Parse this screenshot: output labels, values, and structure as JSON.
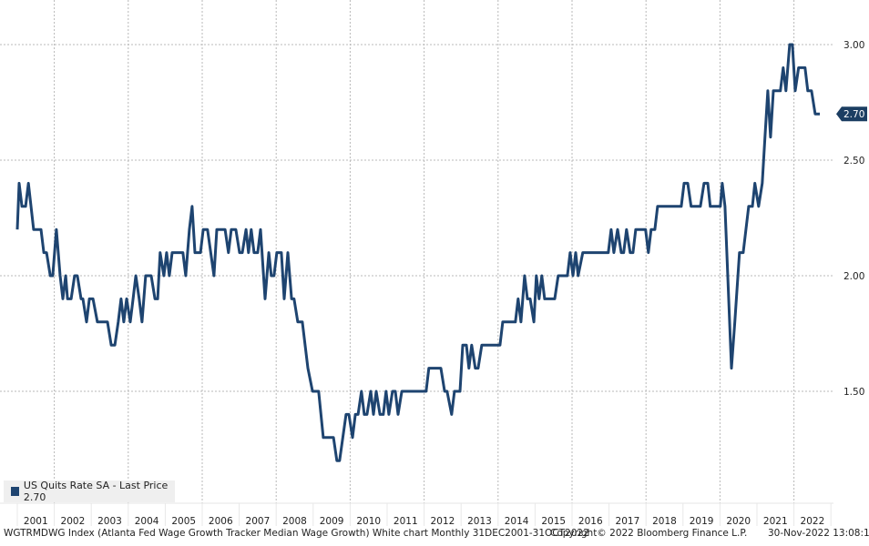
{
  "chart_data": {
    "type": "line",
    "title": "",
    "footer_left": "WGTRMDWG Index (Atlanta Fed Wage Growth Tracker Median Wage Growth) White chart  Monthly 31DEC2001-31OCT2022",
    "copyright": "Copyright© 2022 Bloomberg Finance L.P.",
    "timestamp": "30-Nov-2022 13:08:17",
    "legend": {
      "label": "US Quits Rate SA - Last Price 2.70",
      "position": "bottom-left"
    },
    "last_price": "2.70",
    "line_color": "#1e4470",
    "x_unit": "months since Dec 2001 (approx)",
    "xlim": [
      0,
      260.7
    ],
    "ylim": [
      1.0,
      3.18
    ],
    "y_ticks": [
      "3.00",
      "2.50",
      "2.00",
      "1.50"
    ],
    "y_tick_values": [
      3.0,
      2.5,
      2.0,
      1.5
    ],
    "x_tick_labels": [
      "2001",
      "2002",
      "2003",
      "2004",
      "2005",
      "2006",
      "2007",
      "2008",
      "2009",
      "2010",
      "2011",
      "2012",
      "2013",
      "2014",
      "2015",
      "2016",
      "2017",
      "2018",
      "2019",
      "2020",
      "2021",
      "2022"
    ],
    "series": [
      {
        "name": "US Quits Rate SA",
        "points": [
          [
            0,
            2.2
          ],
          [
            0.6,
            2.4
          ],
          [
            1.5,
            2.3
          ],
          [
            2.7,
            2.3
          ],
          [
            3.6,
            2.4
          ],
          [
            5.3,
            2.2
          ],
          [
            7.7,
            2.2
          ],
          [
            8.6,
            2.1
          ],
          [
            9.5,
            2.1
          ],
          [
            10.7,
            2.0
          ],
          [
            11.5,
            2.0
          ],
          [
            12.7,
            2.2
          ],
          [
            13.9,
            2.0
          ],
          [
            14.8,
            1.9
          ],
          [
            15.7,
            2.0
          ],
          [
            16.3,
            1.9
          ],
          [
            17.5,
            1.9
          ],
          [
            18.6,
            2.0
          ],
          [
            19.5,
            2.0
          ],
          [
            20.7,
            1.9
          ],
          [
            21.3,
            1.9
          ],
          [
            22.5,
            1.8
          ],
          [
            23.4,
            1.9
          ],
          [
            24.6,
            1.9
          ],
          [
            26.0,
            1.8
          ],
          [
            29.3,
            1.8
          ],
          [
            30.5,
            1.7
          ],
          [
            31.7,
            1.7
          ],
          [
            32.8,
            1.8
          ],
          [
            33.7,
            1.9
          ],
          [
            34.6,
            1.8
          ],
          [
            35.5,
            1.9
          ],
          [
            36.7,
            1.8
          ],
          [
            37.6,
            1.9
          ],
          [
            38.5,
            2.0
          ],
          [
            39.6,
            1.9
          ],
          [
            40.5,
            1.8
          ],
          [
            41.7,
            2.0
          ],
          [
            43.5,
            2.0
          ],
          [
            44.7,
            1.9
          ],
          [
            45.6,
            1.9
          ],
          [
            46.4,
            2.1
          ],
          [
            47.6,
            2.0
          ],
          [
            48.5,
            2.1
          ],
          [
            49.4,
            2.0
          ],
          [
            50.3,
            2.1
          ],
          [
            53.8,
            2.1
          ],
          [
            54.7,
            2.0
          ],
          [
            55.9,
            2.2
          ],
          [
            56.8,
            2.3
          ],
          [
            57.7,
            2.1
          ],
          [
            59.5,
            2.1
          ],
          [
            60.4,
            2.2
          ],
          [
            61.8,
            2.2
          ],
          [
            63.9,
            2.0
          ],
          [
            64.8,
            2.2
          ],
          [
            67.5,
            2.2
          ],
          [
            68.6,
            2.1
          ],
          [
            69.5,
            2.2
          ],
          [
            71.0,
            2.2
          ],
          [
            72.2,
            2.1
          ],
          [
            73.1,
            2.1
          ],
          [
            74.3,
            2.2
          ],
          [
            75.1,
            2.1
          ],
          [
            76.0,
            2.2
          ],
          [
            76.9,
            2.1
          ],
          [
            78.1,
            2.1
          ],
          [
            79.0,
            2.2
          ],
          [
            80.5,
            1.9
          ],
          [
            81.7,
            2.1
          ],
          [
            82.5,
            2.0
          ],
          [
            83.4,
            2.0
          ],
          [
            84.3,
            2.1
          ],
          [
            85.8,
            2.1
          ],
          [
            86.7,
            1.9
          ],
          [
            87.9,
            2.1
          ],
          [
            89.1,
            1.9
          ],
          [
            89.9,
            1.9
          ],
          [
            91.1,
            1.8
          ],
          [
            92.6,
            1.8
          ],
          [
            94.4,
            1.6
          ],
          [
            95.9,
            1.5
          ],
          [
            97.9,
            1.5
          ],
          [
            99.4,
            1.3
          ],
          [
            102.7,
            1.3
          ],
          [
            103.8,
            1.2
          ],
          [
            104.7,
            1.2
          ],
          [
            106.8,
            1.4
          ],
          [
            107.7,
            1.4
          ],
          [
            108.9,
            1.3
          ],
          [
            109.8,
            1.4
          ],
          [
            110.7,
            1.4
          ],
          [
            111.8,
            1.5
          ],
          [
            112.7,
            1.4
          ],
          [
            113.6,
            1.4
          ],
          [
            114.8,
            1.5
          ],
          [
            115.7,
            1.4
          ],
          [
            116.6,
            1.5
          ],
          [
            117.8,
            1.4
          ],
          [
            118.9,
            1.4
          ],
          [
            119.8,
            1.5
          ],
          [
            120.7,
            1.4
          ],
          [
            121.9,
            1.5
          ],
          [
            122.8,
            1.5
          ],
          [
            123.7,
            1.4
          ],
          [
            124.9,
            1.5
          ],
          [
            132.8,
            1.5
          ],
          [
            133.7,
            1.6
          ],
          [
            137.6,
            1.6
          ],
          [
            138.8,
            1.5
          ],
          [
            139.6,
            1.5
          ],
          [
            141.1,
            1.4
          ],
          [
            142.0,
            1.5
          ],
          [
            143.8,
            1.5
          ],
          [
            144.7,
            1.7
          ],
          [
            145.9,
            1.7
          ],
          [
            146.7,
            1.6
          ],
          [
            147.6,
            1.7
          ],
          [
            148.8,
            1.6
          ],
          [
            149.7,
            1.6
          ],
          [
            150.9,
            1.7
          ],
          [
            156.8,
            1.7
          ],
          [
            157.7,
            1.8
          ],
          [
            161.8,
            1.8
          ],
          [
            162.7,
            1.9
          ],
          [
            163.6,
            1.8
          ],
          [
            164.8,
            2.0
          ],
          [
            165.7,
            1.9
          ],
          [
            166.6,
            1.9
          ],
          [
            167.8,
            1.8
          ],
          [
            168.6,
            2.0
          ],
          [
            169.5,
            1.9
          ],
          [
            170.4,
            2.0
          ],
          [
            171.3,
            1.9
          ],
          [
            174.6,
            1.9
          ],
          [
            175.7,
            2.0
          ],
          [
            178.7,
            2.0
          ],
          [
            179.6,
            2.1
          ],
          [
            180.5,
            2.0
          ],
          [
            181.4,
            2.1
          ],
          [
            182.2,
            2.0
          ],
          [
            183.7,
            2.1
          ],
          [
            192.0,
            2.1
          ],
          [
            192.9,
            2.2
          ],
          [
            193.8,
            2.1
          ],
          [
            195.0,
            2.2
          ],
          [
            196.2,
            2.1
          ],
          [
            197.0,
            2.1
          ],
          [
            197.9,
            2.2
          ],
          [
            199.1,
            2.1
          ],
          [
            200.0,
            2.1
          ],
          [
            200.9,
            2.2
          ],
          [
            204.1,
            2.2
          ],
          [
            205.0,
            2.1
          ],
          [
            205.9,
            2.2
          ],
          [
            207.1,
            2.2
          ],
          [
            208.0,
            2.3
          ],
          [
            215.7,
            2.3
          ],
          [
            216.6,
            2.4
          ],
          [
            217.8,
            2.4
          ],
          [
            218.9,
            2.3
          ],
          [
            221.9,
            2.3
          ],
          [
            223.1,
            2.4
          ],
          [
            224.3,
            2.4
          ],
          [
            225.1,
            2.3
          ],
          [
            228.4,
            2.3
          ],
          [
            229.0,
            2.4
          ],
          [
            229.9,
            2.3
          ],
          [
            232.0,
            1.6
          ],
          [
            233.1,
            1.8
          ],
          [
            234.6,
            2.1
          ],
          [
            235.8,
            2.1
          ],
          [
            237.6,
            2.3
          ],
          [
            238.8,
            2.3
          ],
          [
            239.6,
            2.4
          ],
          [
            240.8,
            2.3
          ],
          [
            242.0,
            2.4
          ],
          [
            242.9,
            2.6
          ],
          [
            243.8,
            2.8
          ],
          [
            244.7,
            2.6
          ],
          [
            245.6,
            2.8
          ],
          [
            247.9,
            2.8
          ],
          [
            248.8,
            2.9
          ],
          [
            249.7,
            2.8
          ],
          [
            250.9,
            3.0
          ],
          [
            251.8,
            3.0
          ],
          [
            252.7,
            2.8
          ],
          [
            253.8,
            2.9
          ],
          [
            255.9,
            2.9
          ],
          [
            256.8,
            2.8
          ],
          [
            258.0,
            2.8
          ],
          [
            259.2,
            2.7
          ],
          [
            260.7,
            2.7
          ]
        ]
      }
    ]
  }
}
